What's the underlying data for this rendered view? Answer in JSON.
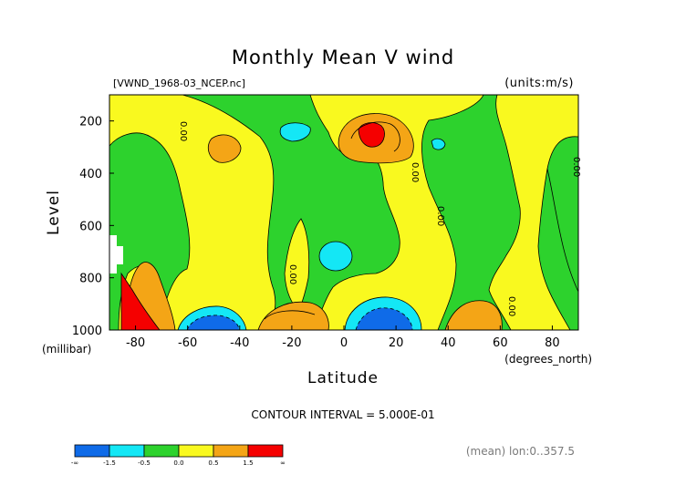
{
  "chart_data": {
    "type": "heatmap",
    "title": "Monthly Mean V wind",
    "dataset_label": "[VWND_1968-03_NCEP.nc]",
    "units_label": "(units:m/s)",
    "xlabel": "Latitude",
    "x_units": "(degrees_north)",
    "ylabel": "Level",
    "y_units": "(millibar)",
    "xlim": [
      -90,
      90
    ],
    "ylim": [
      1000,
      100
    ],
    "x_ticks": [
      "-80",
      "-60",
      "-40",
      "-20",
      "0",
      "20",
      "40",
      "60",
      "80"
    ],
    "y_ticks": [
      "200",
      "400",
      "600",
      "800",
      "1000"
    ],
    "contour_interval_label": "CONTOUR INTERVAL = 5.000E-01",
    "zero_contour_label": "0.00",
    "footer_label": "(mean) lon:0..357.5",
    "colorbar": {
      "labels": [
        "-∞",
        "-1.5",
        "-0.5",
        "0.0",
        "0.5",
        "1.5",
        "∞"
      ],
      "colors": [
        "#0f6be8",
        "#14e7f5",
        "#2dd22d",
        "#f9f91f",
        "#f4a516",
        "#f50000"
      ]
    },
    "colors": {
      "green": "#2dd22d",
      "yellow": "#f9f91f",
      "orange": "#f4a516",
      "red": "#f50000",
      "cyan": "#14e7f5",
      "blue": "#0f6be8"
    }
  }
}
